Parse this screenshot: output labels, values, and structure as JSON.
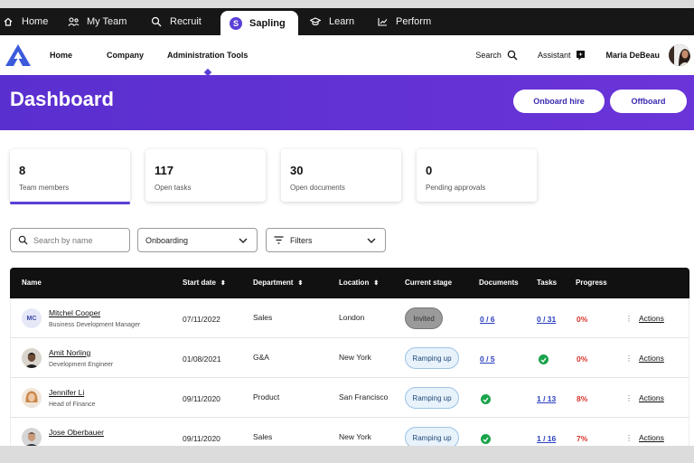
{
  "app_tabs": [
    {
      "label": "Home",
      "icon": "home-icon"
    },
    {
      "label": "My Team",
      "icon": "team-icon"
    },
    {
      "label": "Recruit",
      "icon": "recruit-icon"
    },
    {
      "label": "Sapling",
      "icon": "sapling-icon",
      "active": true
    },
    {
      "label": "Learn",
      "icon": "learn-icon"
    },
    {
      "label": "Perform",
      "icon": "perform-icon"
    }
  ],
  "nav": {
    "links": [
      "Home",
      "Company",
      "Administration Tools"
    ],
    "active_link": "Administration Tools",
    "search": "Search",
    "assistant": "Assistant",
    "user": "Maria DeBeau"
  },
  "banner": {
    "title": "Dashboard",
    "onboard": "Onboard hire",
    "offboard": "Offboard"
  },
  "stats": [
    {
      "value": "8",
      "label": "Team members",
      "active": true
    },
    {
      "value": "117",
      "label": "Open tasks"
    },
    {
      "value": "30",
      "label": "Open documents"
    },
    {
      "value": "0",
      "label": "Pending approvals"
    }
  ],
  "filters": {
    "search_placeholder": "Search by name",
    "stage_select": "Onboarding",
    "filters_label": "Filters"
  },
  "table": {
    "columns": [
      "Name",
      "Start date",
      "Department",
      "Location",
      "Current stage",
      "Documents",
      "Tasks",
      "Progress"
    ],
    "rows": [
      {
        "name": "Mitchel Cooper",
        "title": "Business Development Manager",
        "initials": "MC",
        "start": "07/11/2022",
        "dept": "Sales",
        "location": "London",
        "stage": "Invited",
        "documents": "0 / 6",
        "tasks": "0 / 31",
        "progress": "0%",
        "actions": "Actions"
      },
      {
        "name": "Amit Norling",
        "title": "Development Engineer",
        "start": "01/08/2021",
        "dept": "G&A",
        "location": "New York",
        "stage": "Ramping up",
        "documents": "0 / 5",
        "tasks": "",
        "progress": "0%",
        "actions": "Actions"
      },
      {
        "name": "Jennifer Li",
        "title": "Head of Finance",
        "start": "09/11/2020",
        "dept": "Product",
        "location": "San Francisco",
        "stage": "Ramping up",
        "documents": "",
        "tasks": "1 / 13",
        "progress": "8%",
        "actions": "Actions"
      },
      {
        "name": "Jose Oberbauer",
        "title": "",
        "start": "09/11/2020",
        "dept": "Sales",
        "location": "New York",
        "stage": "Ramping up",
        "documents": "",
        "tasks": "1 / 16",
        "progress": "7%",
        "actions": "Actions"
      }
    ]
  },
  "colors": {
    "accent": "#5b3fd6",
    "success": "#19a34a",
    "danger": "#d9342b"
  }
}
